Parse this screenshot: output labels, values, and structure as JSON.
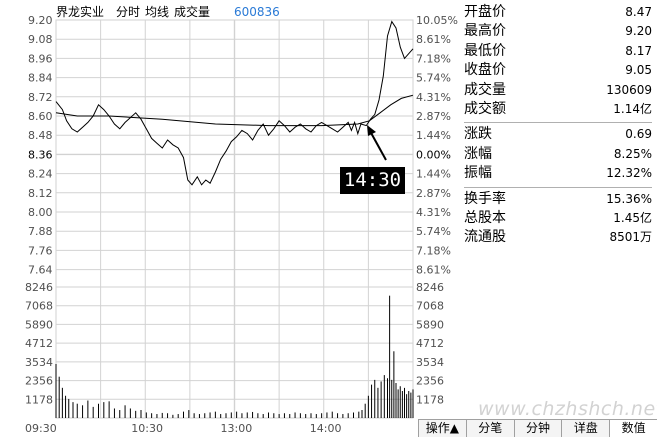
{
  "header": {
    "name": "界龙实业",
    "mode": "分时",
    "avg": "均线",
    "vol": "成交量",
    "code": "600836"
  },
  "stats": [
    {
      "label": "开盘价",
      "value": "8.47"
    },
    {
      "label": "最高价",
      "value": "9.20"
    },
    {
      "label": "最低价",
      "value": "8.17"
    },
    {
      "label": "收盘价",
      "value": "9.05"
    },
    {
      "label": "成交量",
      "value": "130609"
    },
    {
      "label": "成交额",
      "value": "1.14亿"
    },
    {
      "label": "涨跌",
      "value": "0.69"
    },
    {
      "label": "涨幅",
      "value": "8.25%"
    },
    {
      "label": "振幅",
      "value": "12.32%"
    },
    {
      "label": "换手率",
      "value": "15.36%"
    },
    {
      "label": "总股本",
      "value": "1.45亿"
    },
    {
      "label": "流通股",
      "value": "8501万"
    }
  ],
  "tabs": [
    "操作▲",
    "分笔",
    "分钟",
    "详盘",
    "数值"
  ],
  "callout": "14:30",
  "watermark": "www.chzhshch.net",
  "colors": {
    "grid": "#d2d2d2",
    "line": "#000000",
    "code": "#2a7ad6"
  },
  "chart_data": {
    "type": "line",
    "prev_close": 8.36,
    "price_ticks": [
      "9.20",
      "9.08",
      "8.96",
      "8.84",
      "8.72",
      "8.60",
      "8.48",
      "8.36",
      "8.24",
      "8.12",
      "8.00",
      "7.88",
      "7.76",
      "7.64"
    ],
    "pct_ticks": [
      "10.05%",
      "8.61%",
      "7.18%",
      "5.74%",
      "4.31%",
      "2.87%",
      "1.44%",
      "0.00%",
      "1.44%",
      "2.87%",
      "4.31%",
      "5.74%",
      "7.18%",
      "8.61%"
    ],
    "vol_ticks": [
      "8246",
      "7068",
      "5890",
      "4712",
      "3534",
      "2356",
      "1178"
    ],
    "time_labels": [
      "09:30",
      "10:30",
      "13:00",
      "14:00"
    ],
    "price_line": [
      [
        0,
        8.69
      ],
      [
        6,
        8.64
      ],
      [
        10,
        8.57
      ],
      [
        15,
        8.52
      ],
      [
        20,
        8.5
      ],
      [
        25,
        8.53
      ],
      [
        30,
        8.56
      ],
      [
        35,
        8.6
      ],
      [
        40,
        8.67
      ],
      [
        45,
        8.64
      ],
      [
        50,
        8.6
      ],
      [
        55,
        8.55
      ],
      [
        60,
        8.52
      ],
      [
        65,
        8.56
      ],
      [
        70,
        8.59
      ],
      [
        75,
        8.62
      ],
      [
        80,
        8.58
      ],
      [
        85,
        8.52
      ],
      [
        90,
        8.46
      ],
      [
        95,
        8.43
      ],
      [
        100,
        8.4
      ],
      [
        105,
        8.45
      ],
      [
        110,
        8.42
      ],
      [
        115,
        8.4
      ],
      [
        120,
        8.34
      ],
      [
        124,
        8.2
      ],
      [
        128,
        8.17
      ],
      [
        133,
        8.22
      ],
      [
        137,
        8.17
      ],
      [
        141,
        8.2
      ],
      [
        145,
        8.18
      ],
      [
        150,
        8.25
      ],
      [
        155,
        8.33
      ],
      [
        160,
        8.38
      ],
      [
        165,
        8.44
      ],
      [
        170,
        8.47
      ],
      [
        175,
        8.51
      ],
      [
        180,
        8.49
      ],
      [
        185,
        8.45
      ],
      [
        190,
        8.51
      ],
      [
        195,
        8.55
      ],
      [
        200,
        8.48
      ],
      [
        205,
        8.52
      ],
      [
        210,
        8.57
      ],
      [
        215,
        8.54
      ],
      [
        220,
        8.5
      ],
      [
        225,
        8.53
      ],
      [
        230,
        8.55
      ],
      [
        235,
        8.52
      ],
      [
        240,
        8.5
      ],
      [
        245,
        8.54
      ],
      [
        250,
        8.56
      ],
      [
        255,
        8.54
      ],
      [
        260,
        8.52
      ],
      [
        265,
        8.5
      ],
      [
        270,
        8.53
      ],
      [
        275,
        8.56
      ],
      [
        278,
        8.51
      ],
      [
        281,
        8.56
      ],
      [
        284,
        8.49
      ],
      [
        287,
        8.55
      ],
      [
        292,
        8.54
      ],
      [
        296,
        8.58
      ],
      [
        300,
        8.61
      ],
      [
        304,
        8.7
      ],
      [
        308,
        8.85
      ],
      [
        312,
        9.1
      ],
      [
        316,
        9.19
      ],
      [
        320,
        9.15
      ],
      [
        324,
        9.03
      ],
      [
        328,
        8.96
      ],
      [
        332,
        8.99
      ],
      [
        336,
        9.02
      ]
    ],
    "avg_line": [
      [
        0,
        8.62
      ],
      [
        20,
        8.6
      ],
      [
        50,
        8.6
      ],
      [
        100,
        8.58
      ],
      [
        150,
        8.55
      ],
      [
        200,
        8.54
      ],
      [
        250,
        8.54
      ],
      [
        284,
        8.55
      ],
      [
        295,
        8.57
      ],
      [
        305,
        8.62
      ],
      [
        315,
        8.67
      ],
      [
        325,
        8.71
      ],
      [
        336,
        8.73
      ]
    ],
    "volume": [
      [
        0,
        3400
      ],
      [
        3,
        2600
      ],
      [
        6,
        1900
      ],
      [
        9,
        1400
      ],
      [
        12,
        1200
      ],
      [
        16,
        1000
      ],
      [
        20,
        900
      ],
      [
        25,
        800
      ],
      [
        30,
        1100
      ],
      [
        35,
        700
      ],
      [
        40,
        900
      ],
      [
        45,
        1000
      ],
      [
        50,
        1050
      ],
      [
        55,
        600
      ],
      [
        60,
        500
      ],
      [
        65,
        800
      ],
      [
        70,
        600
      ],
      [
        75,
        450
      ],
      [
        80,
        500
      ],
      [
        85,
        350
      ],
      [
        90,
        300
      ],
      [
        95,
        250
      ],
      [
        100,
        320
      ],
      [
        105,
        300
      ],
      [
        110,
        200
      ],
      [
        115,
        250
      ],
      [
        120,
        400
      ],
      [
        125,
        500
      ],
      [
        130,
        300
      ],
      [
        135,
        250
      ],
      [
        140,
        300
      ],
      [
        145,
        350
      ],
      [
        150,
        400
      ],
      [
        155,
        250
      ],
      [
        160,
        300
      ],
      [
        165,
        350
      ],
      [
        170,
        400
      ],
      [
        175,
        300
      ],
      [
        180,
        350
      ],
      [
        185,
        380
      ],
      [
        190,
        300
      ],
      [
        195,
        250
      ],
      [
        200,
        350
      ],
      [
        205,
        300
      ],
      [
        210,
        250
      ],
      [
        215,
        300
      ],
      [
        220,
        250
      ],
      [
        225,
        350
      ],
      [
        230,
        300
      ],
      [
        235,
        250
      ],
      [
        240,
        300
      ],
      [
        245,
        250
      ],
      [
        250,
        300
      ],
      [
        255,
        350
      ],
      [
        260,
        400
      ],
      [
        265,
        300
      ],
      [
        270,
        250
      ],
      [
        275,
        300
      ],
      [
        280,
        350
      ],
      [
        285,
        400
      ],
      [
        288,
        500
      ],
      [
        291,
        900
      ],
      [
        294,
        1400
      ],
      [
        297,
        2100
      ],
      [
        300,
        2400
      ],
      [
        303,
        1900
      ],
      [
        306,
        2300
      ],
      [
        309,
        2700
      ],
      [
        312,
        2500
      ],
      [
        314,
        7700
      ],
      [
        316,
        2400
      ],
      [
        318,
        4200
      ],
      [
        320,
        2200
      ],
      [
        322,
        1800
      ],
      [
        324,
        2000
      ],
      [
        326,
        1700
      ],
      [
        328,
        1900
      ],
      [
        330,
        1500
      ],
      [
        332,
        1700
      ],
      [
        334,
        1600
      ],
      [
        336,
        1800
      ]
    ]
  }
}
